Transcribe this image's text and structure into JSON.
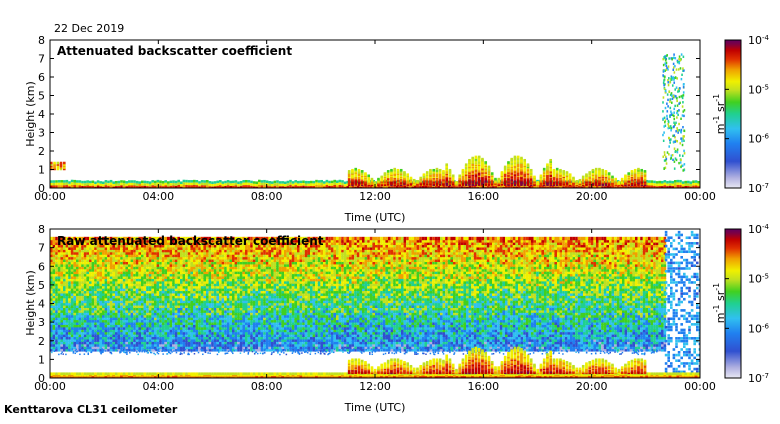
{
  "header": {
    "date": "22 Dec 2019"
  },
  "footer": {
    "instrument": "Kenttarova CL31 ceilometer"
  },
  "colorbar": {
    "ticks": [
      {
        "base": "10",
        "exp": "-4"
      },
      {
        "base": "10",
        "exp": "-5"
      },
      {
        "base": "10",
        "exp": "-6"
      },
      {
        "base": "10",
        "exp": "-7"
      }
    ],
    "unit_m": "m",
    "unit_m_exp": "-1",
    "unit_sr": "sr",
    "unit_sr_exp": "-1",
    "colors": [
      "#e8e8f4",
      "#b0b0e0",
      "#3050d0",
      "#2080f0",
      "#30c0f0",
      "#20d090",
      "#40d020",
      "#c0e020",
      "#f0f000",
      "#f0a000",
      "#e03000",
      "#c00000",
      "#800040",
      "#600060"
    ]
  },
  "chart_data": [
    {
      "type": "heatmap",
      "title": "Attenuated backscatter coefficient",
      "xlabel": "Time (UTC)",
      "ylabel": "Height (km)",
      "x_ticks": [
        "00:00",
        "04:00",
        "08:00",
        "12:00",
        "16:00",
        "20:00",
        "00:00"
      ],
      "y_ticks": [
        "0",
        "1",
        "2",
        "3",
        "4",
        "5",
        "6",
        "7",
        "8"
      ],
      "ylim": [
        0,
        8
      ],
      "xlim_hours": [
        0,
        24
      ],
      "color_scale": "log",
      "color_range": [
        1e-07,
        0.0001
      ],
      "features": {
        "surface_layer_top_km": 0.35,
        "cloud_hours": [
          11,
          22
        ],
        "cloud_top_km_max": 1.8,
        "high_cloud_hours": [
          22.6,
          23.4
        ],
        "high_cloud_km": [
          1,
          7.3
        ]
      }
    },
    {
      "type": "heatmap",
      "title": "Raw attenuated backscatter coefficient",
      "xlabel": "Time (UTC)",
      "ylabel": "Height (km)",
      "x_ticks": [
        "00:00",
        "04:00",
        "08:00",
        "12:00",
        "16:00",
        "20:00",
        "00:00"
      ],
      "y_ticks": [
        "0",
        "1",
        "2",
        "3",
        "4",
        "5",
        "6",
        "7",
        "8"
      ],
      "ylim": [
        0,
        8
      ],
      "xlim_hours": [
        0,
        24
      ],
      "color_scale": "log",
      "color_range": [
        1e-07,
        0.0001
      ],
      "features": {
        "noise_floor_km": 1.6,
        "data_top_km": 7.7,
        "clear_gap_km": [
          0.5,
          1.3
        ]
      }
    }
  ]
}
